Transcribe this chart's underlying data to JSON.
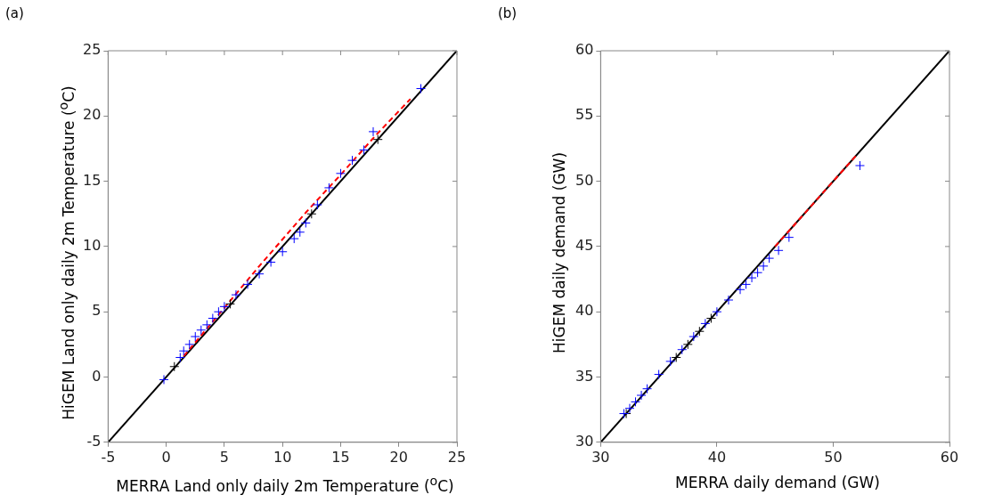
{
  "chart_data": [
    {
      "type": "scatter",
      "title": "(a)",
      "xlabel": "MERRA Land only daily 2m Temperature ($^{o}$C)",
      "ylabel": "HiGEM Land only daily 2m Temperature ($^{o}$C)",
      "xlim": [
        -5,
        25
      ],
      "ylim": [
        -5,
        25
      ],
      "xticks": [
        -5,
        0,
        5,
        10,
        15,
        20,
        25
      ],
      "yticks": [
        -5,
        0,
        5,
        10,
        15,
        20,
        25
      ],
      "grid": false,
      "legend": false,
      "marker": "cross",
      "series": [
        {
          "color": "#0000ff",
          "x": [
            -0.2,
            1.2,
            1.5,
            2,
            2.5,
            3,
            3.5,
            4,
            4.5,
            5,
            6,
            7,
            8,
            9,
            10,
            11,
            11.5,
            12,
            13,
            14,
            15,
            16,
            17,
            17.8,
            21.9
          ],
          "values": [
            -0.2,
            1.5,
            2.0,
            2.5,
            3.1,
            3.6,
            4.0,
            4.5,
            5.0,
            5.4,
            6.3,
            7.1,
            7.9,
            8.8,
            9.6,
            10.6,
            11.1,
            11.8,
            13.2,
            14.5,
            15.6,
            16.6,
            17.4,
            18.8,
            22.1
          ]
        },
        {
          "color": "#000000",
          "x": [
            0.7,
            5.5,
            12.5,
            18.2
          ],
          "values": [
            0.8,
            5.6,
            12.5,
            18.2
          ]
        },
        {
          "type": "line",
          "color": "#ff0000",
          "line_style": "dashed",
          "marker": "none",
          "x": [
            1.5,
            5,
            8,
            12,
            15,
            18,
            21
          ],
          "values": [
            1.6,
            5.3,
            8.5,
            12.6,
            15.5,
            18.5,
            21.3
          ]
        },
        {
          "type": "line",
          "color": "#000000",
          "line_style": "solid",
          "marker": "none",
          "x": [
            -5,
            25
          ],
          "values": [
            -5,
            25
          ]
        }
      ]
    },
    {
      "type": "scatter",
      "title": "(b)",
      "xlabel": "MERRA daily demand (GW)",
      "ylabel": "HiGEM daily demand (GW)",
      "xlim": [
        30,
        60
      ],
      "ylim": [
        30,
        60
      ],
      "xticks": [
        30,
        40,
        50,
        60
      ],
      "yticks": [
        30,
        35,
        40,
        45,
        50,
        55,
        60
      ],
      "grid": false,
      "legend": false,
      "marker": "cross",
      "series": [
        {
          "color": "#0000ff",
          "x": [
            32,
            32.5,
            33,
            33.5,
            34,
            35,
            36,
            37,
            38,
            39,
            40,
            41,
            42,
            42.5,
            43,
            43.5,
            44,
            44.5,
            45.3,
            46.2,
            52.3
          ],
          "values": [
            32.2,
            32.6,
            33.1,
            33.6,
            34.1,
            35.2,
            36.2,
            37.1,
            38.1,
            39.1,
            40.0,
            40.9,
            41.7,
            42.1,
            42.6,
            43.0,
            43.5,
            44.1,
            44.7,
            45.7,
            51.2
          ]
        },
        {
          "color": "#000000",
          "x": [
            32.2,
            36.5,
            37.5,
            38.5,
            39.5
          ],
          "values": [
            32.2,
            36.5,
            37.5,
            38.5,
            39.5
          ]
        },
        {
          "type": "line",
          "color": "#ff0000",
          "line_style": "dashed",
          "marker": "none",
          "x": [
            45,
            48,
            50,
            52
          ],
          "values": [
            45,
            48,
            50,
            52
          ]
        },
        {
          "type": "line",
          "color": "#000000",
          "line_style": "solid",
          "marker": "none",
          "x": [
            30,
            60
          ],
          "values": [
            30,
            60
          ]
        }
      ]
    }
  ]
}
